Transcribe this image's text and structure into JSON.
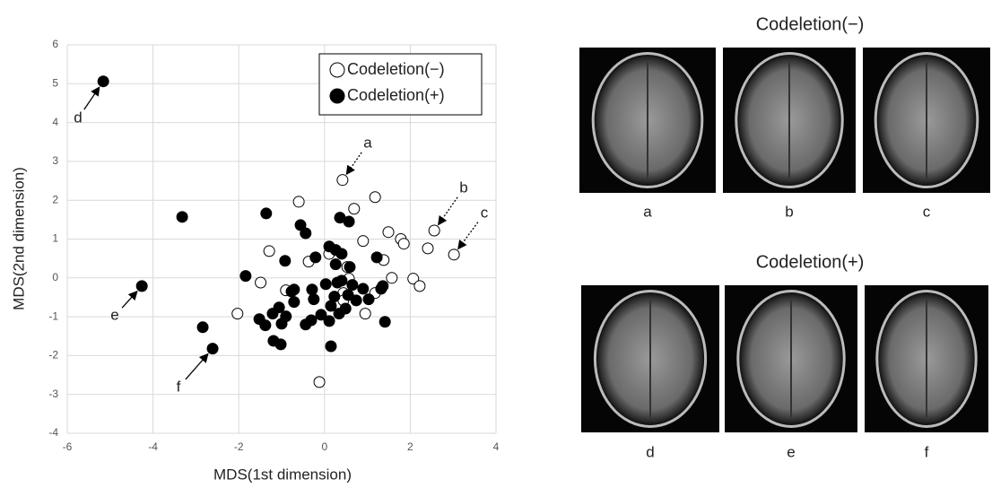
{
  "chart_data": {
    "type": "scatter",
    "x_label": "MDS(1st dimension)",
    "y_label": "MDS(2nd dimension)",
    "xlim": [
      -6,
      4
    ],
    "xticks": [
      -6,
      -4,
      -2,
      0,
      2,
      4
    ],
    "ylim": [
      -4,
      6
    ],
    "yticks": [
      -4,
      -3,
      -2,
      -1,
      0,
      1,
      2,
      3,
      4,
      5,
      6
    ],
    "grid": true,
    "legend": "upper right",
    "series": [
      {
        "name": "Codeletion(−)",
        "color": "#ffffff",
        "x": [
          0.42,
          2.56,
          3.02,
          -0.6,
          1.18,
          0.69,
          0.9,
          1.49,
          1.78,
          1.85,
          1.38,
          2.41,
          1.57,
          2.07,
          2.22,
          -1.29,
          -1.49,
          -2.03,
          -0.9,
          -0.37,
          0.11,
          0.53,
          0.44,
          0.44,
          0.95,
          1.18,
          -0.12,
          0.57
        ],
        "values": [
          2.52,
          1.22,
          0.6,
          1.96,
          2.08,
          1.78,
          0.95,
          1.18,
          1.0,
          0.88,
          0.46,
          0.76,
          0.0,
          -0.02,
          -0.21,
          0.69,
          -0.12,
          -0.92,
          -0.32,
          0.42,
          0.62,
          0.28,
          -0.39,
          -0.58,
          -0.92,
          -0.39,
          -2.68,
          -0.02
        ]
      },
      {
        "name": "Codeletion(+)",
        "color": "#000000",
        "x": [
          -5.16,
          -4.26,
          -2.61,
          -3.32,
          -1.36,
          -0.56,
          -0.44,
          0.36,
          0.57,
          0.11,
          0.26,
          0.4,
          0.26,
          0.59,
          -0.21,
          -0.92,
          1.22,
          -1.84,
          0.4,
          0.65,
          0.9,
          1.32,
          -0.29,
          0.03,
          0.3,
          -0.71,
          -0.71,
          -0.25,
          0.23,
          0.55,
          0.74,
          1.03,
          1.36,
          0.15,
          0.34,
          0.49,
          -0.08,
          -0.31,
          -0.44,
          0.11,
          -0.9,
          -1.06,
          -1.21,
          -1.52,
          -1.0,
          -1.38,
          -1.19,
          -1.02,
          -2.84,
          0.15,
          1.41,
          -0.77
        ],
        "values": [
          5.06,
          -0.21,
          -1.82,
          1.57,
          1.66,
          1.36,
          1.15,
          1.55,
          1.45,
          0.81,
          0.72,
          0.62,
          0.35,
          0.28,
          0.53,
          0.44,
          0.53,
          0.05,
          -0.07,
          -0.18,
          -0.28,
          -0.28,
          -0.3,
          -0.16,
          -0.12,
          -0.3,
          -0.62,
          -0.55,
          -0.48,
          -0.44,
          -0.58,
          -0.55,
          -0.21,
          -0.72,
          -0.92,
          -0.79,
          -0.95,
          -1.09,
          -1.2,
          -1.11,
          -0.99,
          -0.76,
          -0.92,
          -1.06,
          -1.18,
          -1.22,
          -1.62,
          -1.71,
          -1.27,
          -1.76,
          -1.13,
          -0.35
        ]
      }
    ],
    "annotations": [
      "a",
      "b",
      "c",
      "d",
      "e",
      "f"
    ]
  },
  "panels": [
    {
      "title": "Codeletion(−)",
      "labels": [
        "a",
        "b",
        "c"
      ]
    },
    {
      "title": "Codeletion(+)",
      "labels": [
        "d",
        "e",
        "f"
      ]
    }
  ]
}
